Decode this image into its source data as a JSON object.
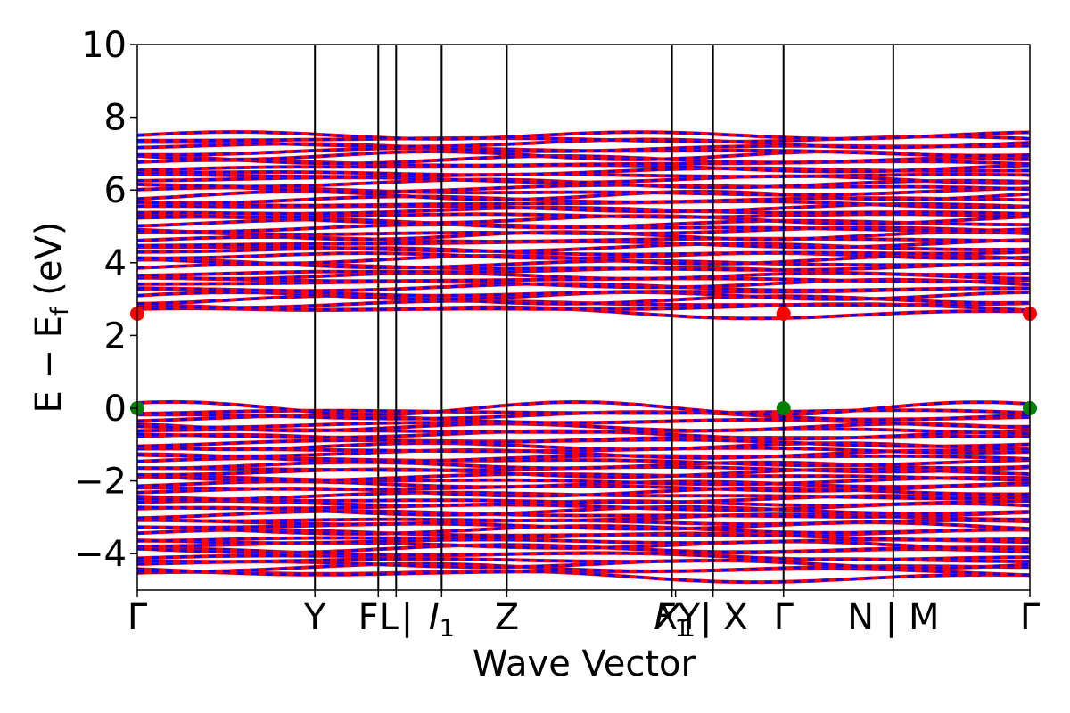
{
  "chart_data": {
    "type": "line",
    "title": "",
    "xlabel": "Wave Vector",
    "ylabel_main": "E − E",
    "ylabel_sub": "f",
    "ylabel_unit": " (eV)",
    "ylim": [
      -5,
      10
    ],
    "yticks": [
      {
        "value": -4,
        "label": "−4"
      },
      {
        "value": -2,
        "label": "−2"
      },
      {
        "value": 0,
        "label": "0"
      },
      {
        "value": 2,
        "label": "2"
      },
      {
        "value": 4,
        "label": "4"
      },
      {
        "value": 6,
        "label": "6"
      },
      {
        "value": 8,
        "label": "8"
      },
      {
        "value": 10,
        "label": "10"
      }
    ],
    "xlim": [
      0,
      1
    ],
    "kpath": [
      {
        "x": 0.0,
        "label": "Γ"
      },
      {
        "x": 0.199,
        "label": "Y"
      },
      {
        "x": 0.27,
        "label": "FL"
      },
      {
        "x": 0.29,
        "label": "I | "
      },
      {
        "x": 0.341,
        "label": "I",
        "sub": "1",
        "italic": true
      },
      {
        "x": 0.414,
        "label": "Z"
      },
      {
        "x": 0.599,
        "label": "F",
        "sub": "1",
        "italic": true
      },
      {
        "x": 0.603,
        "label": "X",
        "sub": "1",
        "italic": true
      },
      {
        "x": 0.645,
        "label": "Y| X"
      },
      {
        "x": 0.724,
        "label": "Γ"
      },
      {
        "x": 0.847,
        "label": "N | M"
      },
      {
        "x": 1.0,
        "label": "Γ"
      }
    ],
    "vlines": [
      0.199,
      0.27,
      0.29,
      0.341,
      0.414,
      0.599,
      0.645,
      0.724,
      0.847
    ],
    "series": [
      {
        "color": "#ff0000",
        "style": "solid"
      },
      {
        "color": "#0000ff",
        "style": "dashed"
      }
    ],
    "band_groups": {
      "conduction": {
        "min": 2.65,
        "max": 7.5,
        "count": 45
      },
      "valence": {
        "min": -4.6,
        "max": 0.0,
        "count": 45
      }
    },
    "markers": {
      "cbm": {
        "color": "#ff0000",
        "y": 2.6,
        "x": [
          0.0,
          0.724,
          1.0
        ]
      },
      "vbm": {
        "color": "#008000",
        "y": 0.0,
        "x": [
          0.0,
          0.724,
          1.0
        ]
      }
    }
  }
}
